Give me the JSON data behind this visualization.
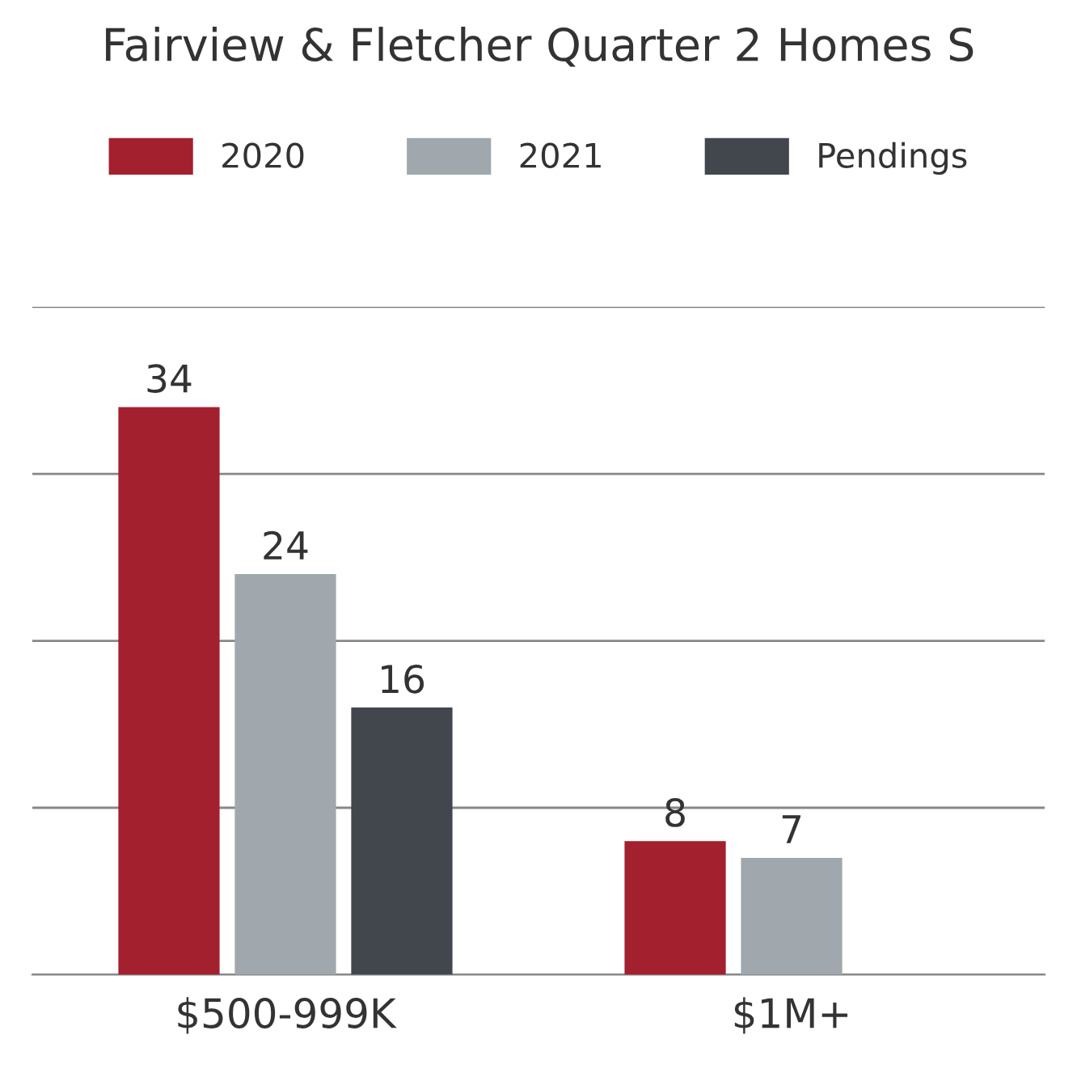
{
  "chart_data": {
    "type": "bar",
    "title": "Fairview & Fletcher Quarter 2 Homes S",
    "categories": [
      "$500-999K",
      "$1M+"
    ],
    "series": [
      {
        "name": "2020",
        "color": "#a3202f",
        "values": [
          34,
          8
        ]
      },
      {
        "name": "2021",
        "color": "#a0a8ad",
        "values": [
          24,
          7
        ]
      },
      {
        "name": "Pendings",
        "color": "#41474d",
        "values": [
          16,
          null
        ]
      }
    ],
    "ylim": [
      0,
      40
    ],
    "yticks": [
      {
        "value": 0,
        "label": null
      },
      {
        "value": 10,
        "label": null
      },
      {
        "value": 20,
        "label": null
      },
      {
        "value": 30,
        "label": null
      },
      {
        "value": 40,
        "label": null
      }
    ],
    "tick_labels": "x",
    "grid": "y",
    "legend": "top",
    "data_labels": true
  }
}
